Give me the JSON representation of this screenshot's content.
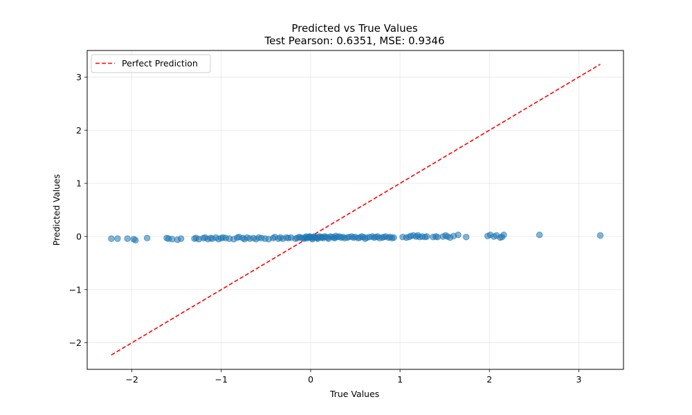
{
  "chart_data": {
    "type": "scatter",
    "title": "Predicted vs True Values",
    "subtitle": "Test Pearson: 0.6351, MSE: 0.9346",
    "xlabel": "True Values",
    "ylabel": "Predicted Values",
    "xlim": [
      -2.5,
      3.5
    ],
    "ylim": [
      -2.5,
      3.5
    ],
    "xticks": [
      -2,
      -1,
      0,
      1,
      2,
      3
    ],
    "yticks": [
      -2,
      -1,
      0,
      1,
      2,
      3
    ],
    "xtick_labels": [
      "−2",
      "−1",
      "0",
      "1",
      "2",
      "3"
    ],
    "ytick_labels": [
      "−2",
      "−1",
      "0",
      "1",
      "2",
      "3"
    ],
    "grid": true,
    "legend_position": "top-left",
    "reference_line": {
      "name": "Perfect Prediction",
      "x": [
        -2.23,
        3.24
      ],
      "y": [
        -2.23,
        3.24
      ],
      "color": "#ff0000",
      "style": "dashed"
    },
    "series": [
      {
        "color": "#1f77b4",
        "points": [
          [
            -2.23,
            -0.04
          ],
          [
            -2.16,
            -0.04
          ],
          [
            -2.05,
            -0.04
          ],
          [
            -1.98,
            -0.05
          ],
          [
            -1.96,
            -0.07
          ],
          [
            -1.83,
            -0.03
          ],
          [
            -1.61,
            -0.03
          ],
          [
            -1.59,
            -0.04
          ],
          [
            -1.55,
            -0.05
          ],
          [
            -1.49,
            -0.06
          ],
          [
            -1.45,
            -0.04
          ],
          [
            -1.3,
            -0.04
          ],
          [
            -1.28,
            -0.03
          ],
          [
            -1.25,
            -0.05
          ],
          [
            -1.2,
            -0.03
          ],
          [
            -1.18,
            -0.02
          ],
          [
            -1.15,
            -0.05
          ],
          [
            -1.12,
            -0.03
          ],
          [
            -1.1,
            -0.04
          ],
          [
            -1.06,
            -0.02
          ],
          [
            -1.03,
            -0.05
          ],
          [
            -1.0,
            -0.03
          ],
          [
            -0.98,
            -0.02
          ],
          [
            -0.95,
            -0.03
          ],
          [
            -0.91,
            -0.04
          ],
          [
            -0.86,
            -0.05
          ],
          [
            -0.82,
            -0.02
          ],
          [
            -0.8,
            -0.01
          ],
          [
            -0.76,
            -0.03
          ],
          [
            -0.74,
            -0.05
          ],
          [
            -0.71,
            -0.02
          ],
          [
            -0.68,
            -0.04
          ],
          [
            -0.64,
            -0.03
          ],
          [
            -0.61,
            -0.05
          ],
          [
            -0.58,
            -0.02
          ],
          [
            -0.55,
            -0.03
          ],
          [
            -0.51,
            -0.04
          ],
          [
            -0.47,
            -0.05
          ],
          [
            -0.42,
            -0.03
          ],
          [
            -0.4,
            -0.01
          ],
          [
            -0.36,
            -0.04
          ],
          [
            -0.34,
            -0.02
          ],
          [
            -0.31,
            -0.04
          ],
          [
            -0.27,
            -0.02
          ],
          [
            -0.25,
            -0.03
          ],
          [
            -0.22,
            -0.02
          ],
          [
            -0.17,
            -0.04
          ],
          [
            -0.15,
            -0.03
          ],
          [
            -0.13,
            -0.01
          ],
          [
            -0.11,
            -0.02
          ],
          [
            -0.09,
            -0.03
          ],
          [
            -0.07,
            -0.04
          ],
          [
            -0.06,
            -0.02
          ],
          [
            -0.05,
            0.0
          ],
          [
            -0.04,
            -0.03
          ],
          [
            -0.03,
            -0.02
          ],
          [
            -0.02,
            -0.01
          ],
          [
            -0.01,
            0.0
          ],
          [
            0.0,
            -0.01
          ],
          [
            0.01,
            -0.03
          ],
          [
            0.02,
            -0.05
          ],
          [
            0.03,
            -0.02
          ],
          [
            0.04,
            0.0
          ],
          [
            0.05,
            -0.01
          ],
          [
            0.06,
            -0.02
          ],
          [
            0.07,
            -0.03
          ],
          [
            0.08,
            -0.04
          ],
          [
            0.09,
            -0.01
          ],
          [
            0.1,
            0.0
          ],
          [
            0.12,
            -0.02
          ],
          [
            0.13,
            -0.01
          ],
          [
            0.14,
            -0.03
          ],
          [
            0.16,
            0.0
          ],
          [
            0.17,
            -0.01
          ],
          [
            0.19,
            -0.02
          ],
          [
            0.2,
            -0.04
          ],
          [
            0.22,
            0.0
          ],
          [
            0.24,
            -0.01
          ],
          [
            0.26,
            -0.02
          ],
          [
            0.27,
            -0.03
          ],
          [
            0.28,
            0.01
          ],
          [
            0.3,
            -0.01
          ],
          [
            0.32,
            0.0
          ],
          [
            0.34,
            -0.02
          ],
          [
            0.36,
            -0.01
          ],
          [
            0.38,
            -0.03
          ],
          [
            0.41,
            -0.02
          ],
          [
            0.43,
            -0.01
          ],
          [
            0.46,
            0.0
          ],
          [
            0.48,
            -0.02
          ],
          [
            0.5,
            -0.01
          ],
          [
            0.53,
            -0.03
          ],
          [
            0.55,
            -0.02
          ],
          [
            0.57,
            0.0
          ],
          [
            0.59,
            -0.01
          ],
          [
            0.61,
            -0.04
          ],
          [
            0.63,
            -0.02
          ],
          [
            0.66,
            -0.01
          ],
          [
            0.69,
            0.0
          ],
          [
            0.71,
            -0.02
          ],
          [
            0.73,
            -0.01
          ],
          [
            0.75,
            0.0
          ],
          [
            0.77,
            -0.03
          ],
          [
            0.8,
            -0.02
          ],
          [
            0.82,
            -0.01
          ],
          [
            0.84,
            0.0
          ],
          [
            0.87,
            -0.02
          ],
          [
            0.89,
            -0.01
          ],
          [
            0.91,
            -0.03
          ],
          [
            0.93,
            -0.02
          ],
          [
            1.03,
            -0.01
          ],
          [
            1.07,
            -0.02
          ],
          [
            1.1,
            -0.01
          ],
          [
            1.12,
            0.01
          ],
          [
            1.15,
            0.02
          ],
          [
            1.18,
            0.0
          ],
          [
            1.2,
            0.02
          ],
          [
            1.22,
            -0.01
          ],
          [
            1.25,
            0.0
          ],
          [
            1.28,
            -0.01
          ],
          [
            1.3,
            0.0
          ],
          [
            1.37,
            -0.01
          ],
          [
            1.4,
            0.0
          ],
          [
            1.42,
            -0.01
          ],
          [
            1.48,
            0.0
          ],
          [
            1.51,
            0.02
          ],
          [
            1.53,
            0.0
          ],
          [
            1.56,
            -0.02
          ],
          [
            1.6,
            0.01
          ],
          [
            1.65,
            0.03
          ],
          [
            1.74,
            -0.01
          ],
          [
            1.98,
            0.01
          ],
          [
            2.01,
            0.03
          ],
          [
            2.05,
            0.0
          ],
          [
            2.08,
            0.02
          ],
          [
            2.12,
            -0.02
          ],
          [
            2.14,
            -0.01
          ],
          [
            2.16,
            0.03
          ],
          [
            2.56,
            0.03
          ],
          [
            3.24,
            0.02
          ]
        ]
      }
    ]
  }
}
